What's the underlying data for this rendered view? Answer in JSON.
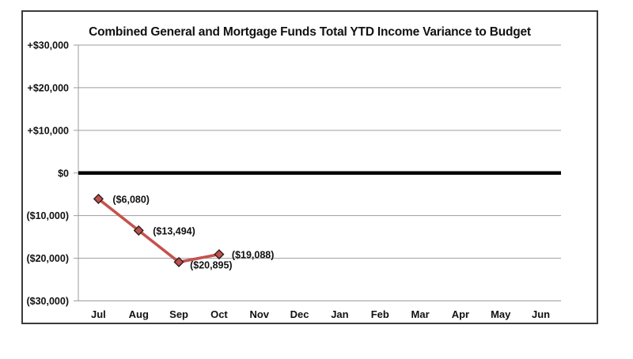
{
  "chart_data": {
    "type": "line",
    "title": "Combined General and Mortgage Funds Total YTD Income Variance to Budget",
    "categories": [
      "Jul",
      "Aug",
      "Sep",
      "Oct",
      "Nov",
      "Dec",
      "Jan",
      "Feb",
      "Mar",
      "Apr",
      "May",
      "Jun"
    ],
    "series": [
      {
        "values": [
          -6080,
          -13494,
          -20895,
          -19088,
          null,
          null,
          null,
          null,
          null,
          null,
          null,
          null
        ],
        "data_labels": [
          "($6,080)",
          "($13,494)",
          "($20,895)",
          "($19,088)",
          null,
          null,
          null,
          null,
          null,
          null,
          null,
          null
        ],
        "line_color": "#c5524e",
        "marker_shape": "diamond",
        "marker_fill": "#c0504d",
        "marker_border": "#2e1f1e"
      }
    ],
    "y_axis": {
      "min": -30000,
      "max": 30000,
      "tick_values": [
        30000,
        20000,
        10000,
        0,
        -10000,
        -20000,
        -30000
      ],
      "tick_labels": [
        "+$30,000",
        "+$20,000",
        "+$10,000",
        "$0",
        "($10,000)",
        "($20,000)",
        "($30,000)"
      ]
    },
    "x_axis": {
      "tick_labels": [
        "Jul",
        "Aug",
        "Sep",
        "Oct",
        "Nov",
        "Dec",
        "Jan",
        "Feb",
        "Mar",
        "Apr",
        "May",
        "Jun"
      ]
    },
    "zero_line": {
      "value": 0,
      "color": "#000000",
      "width": 4.5
    },
    "gridlines": {
      "visible": true,
      "color": "#9d9d9d"
    },
    "axis_line_color": "#9d9d9d",
    "label_color": "#111111",
    "legend": "none",
    "frame_border_color": "#3b3b3b",
    "background": "#ffffff"
  }
}
